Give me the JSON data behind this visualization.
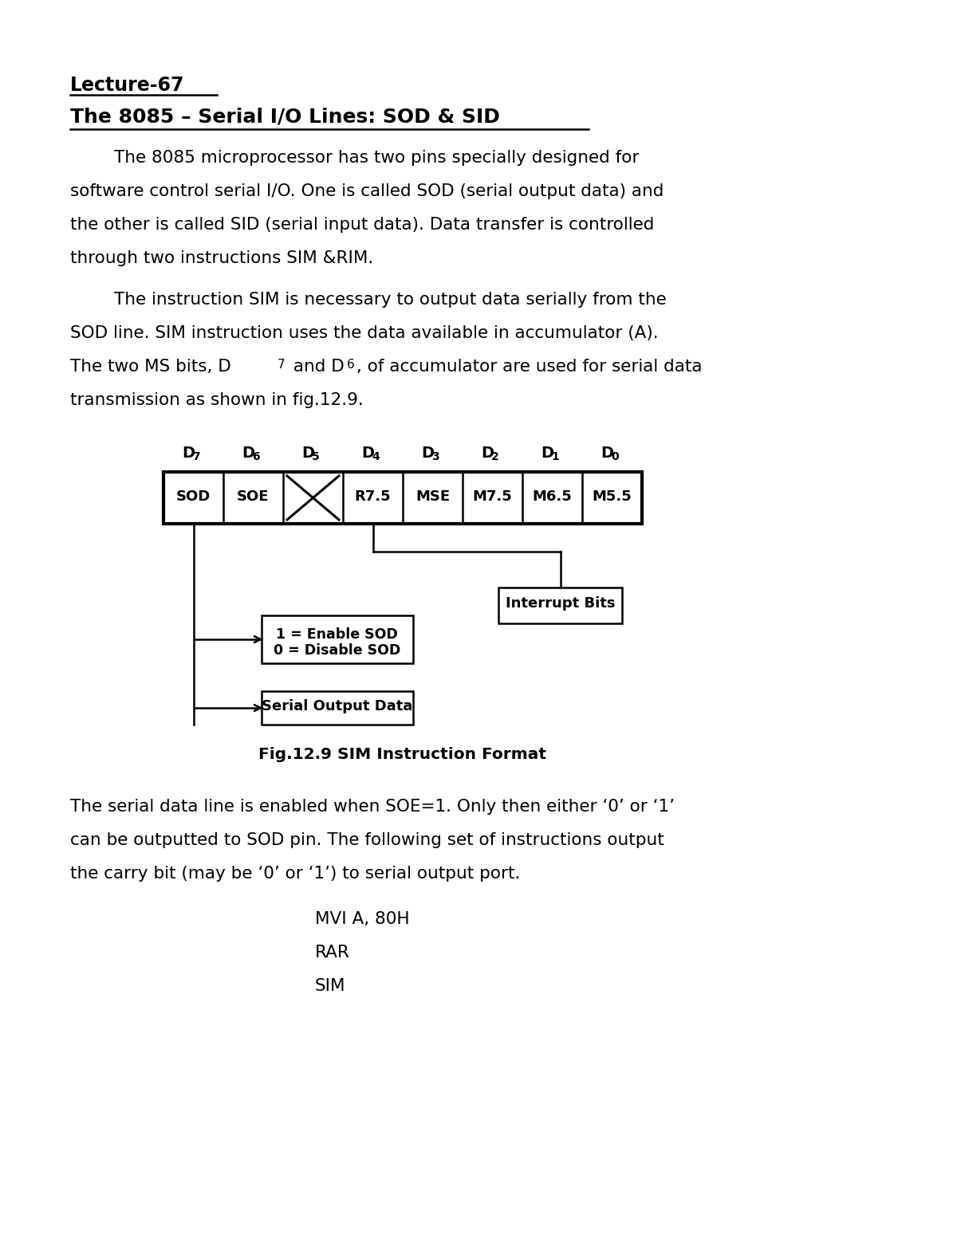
{
  "title1": "Lecture-67",
  "title2": "The 8085 – Serial I/O Lines: SOD & SID",
  "para1_lines": [
    "        The 8085 microprocessor has two pins specially designed for",
    "software control serial I/O. One is called SOD (serial output data) and",
    "the other is called SID (serial input data). Data transfer is controlled",
    "through two instructions SIM &RIM."
  ],
  "para2_line1": "        The instruction SIM is necessary to output data serially from the",
  "para2_line2": "SOD line. SIM instruction uses the data available in accumulator (A).",
  "para2_line3": "The two MS bits, D7 and D6, of accumulator are used for serial data",
  "para2_line4": "transmission as shown in fig.12.9.",
  "bit_labels": [
    "D7",
    "D6",
    "D5",
    "D4",
    "D3",
    "D2",
    "D1",
    "D0"
  ],
  "cell_labels": [
    "SOD",
    "SOE",
    "X",
    "R7.5",
    "MSE",
    "M7.5",
    "M6.5",
    "M5.5"
  ],
  "fig_caption": "Fig.12.9 SIM Instruction Format",
  "enable_line1": "1 = Enable SOD",
  "enable_line2": "0 = Disable SOD",
  "interrupt_label": "Interrupt Bits",
  "serial_label": "Serial Output Data",
  "para3_lines": [
    "The serial data line is enabled when SOE=1. Only then either ‘0’ or ‘1’",
    "can be outputted to SOD pin. The following set of instructions output",
    "the carry bit (may be ‘0’ or ‘1’) to serial output port."
  ],
  "code_lines": [
    "MVI A, 80H",
    "RAR",
    "SIM"
  ],
  "bg_color": "#ffffff",
  "text_color": "#000000"
}
